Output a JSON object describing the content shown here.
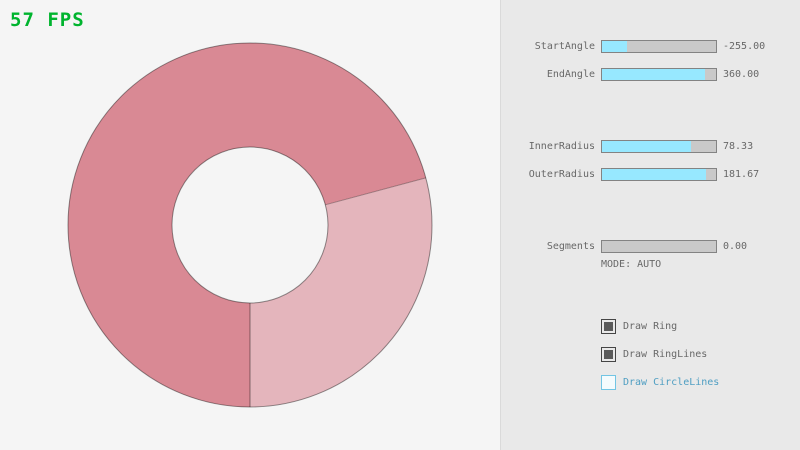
{
  "app": {
    "fps_text": "57 FPS",
    "fps_color": "#00b42e"
  },
  "ring": {
    "overlap_color": "#d98994",
    "single_color": "#e4b5bc",
    "outline_color": "rgba(0,0,0,0.42)"
  },
  "controls": {
    "sliders": [
      {
        "label": "StartAngle",
        "value": "-255.00",
        "fill_pct": 21.7
      },
      {
        "label": "EndAngle",
        "value": "360.00",
        "fill_pct": 90.0
      },
      {
        "label": "InnerRadius",
        "value": "78.33",
        "fill_pct": 78.3
      },
      {
        "label": "OuterRadius",
        "value": "181.67",
        "fill_pct": 90.8
      },
      {
        "label": "Segments",
        "value": "0.00",
        "fill_pct": 0
      }
    ],
    "mode_text": "MODE: AUTO",
    "checkboxes": [
      {
        "label": "Draw Ring",
        "checked": true
      },
      {
        "label": "Draw RingLines",
        "checked": true
      },
      {
        "label": "Draw CircleLines",
        "checked": false
      }
    ]
  }
}
